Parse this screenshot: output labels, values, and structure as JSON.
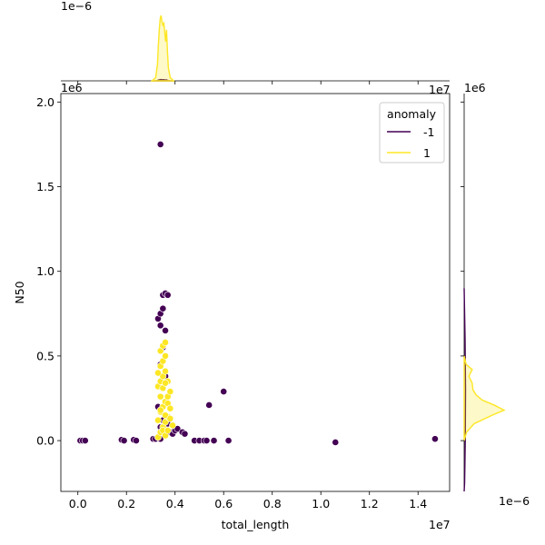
{
  "chart_data": {
    "type": "scatter",
    "xlabel": "total_length",
    "ylabel": "N50",
    "x_multiplier": "1e7",
    "y_multiplier": "1e6",
    "top_density_multiplier": "1e−6",
    "right_density_multiplier": "1e−6",
    "xlim": [
      -0.07,
      1.53
    ],
    "ylim": [
      -0.3,
      2.05
    ],
    "x_ticks": [
      "0.0",
      "0.2",
      "0.4",
      "0.6",
      "0.8",
      "1.0",
      "1.2",
      "1.4"
    ],
    "y_ticks": [
      "0.0",
      "0.5",
      "1.0",
      "1.5",
      "2.0"
    ],
    "legend": {
      "title": "anomaly",
      "placement": "top-right",
      "entries": [
        {
          "label": "-1",
          "color": "#440154"
        },
        {
          "label": "1",
          "color": "#fde725"
        }
      ]
    },
    "series": [
      {
        "name": "-1",
        "color": "#440154",
        "points": [
          [
            0.01,
            0.0
          ],
          [
            0.02,
            0.0
          ],
          [
            0.03,
            0.0
          ],
          [
            0.18,
            0.005
          ],
          [
            0.19,
            0.0
          ],
          [
            0.23,
            0.005
          ],
          [
            0.24,
            0.0
          ],
          [
            0.31,
            0.01
          ],
          [
            0.32,
            0.01
          ],
          [
            0.33,
            0.02
          ],
          [
            0.34,
            0.01
          ],
          [
            0.33,
            0.72
          ],
          [
            0.34,
            0.75
          ],
          [
            0.35,
            0.78
          ],
          [
            0.35,
            0.86
          ],
          [
            0.36,
            0.87
          ],
          [
            0.37,
            0.86
          ],
          [
            0.34,
            0.68
          ],
          [
            0.36,
            0.65
          ],
          [
            0.35,
            0.55
          ],
          [
            0.34,
            0.45
          ],
          [
            0.36,
            0.38
          ],
          [
            0.35,
            0.12
          ],
          [
            0.37,
            0.1
          ],
          [
            0.34,
            0.08
          ],
          [
            0.33,
            0.2
          ],
          [
            0.34,
            1.75
          ],
          [
            0.38,
            0.05
          ],
          [
            0.39,
            0.04
          ],
          [
            0.4,
            0.06
          ],
          [
            0.41,
            0.07
          ],
          [
            0.43,
            0.05
          ],
          [
            0.44,
            0.04
          ],
          [
            0.48,
            0.0
          ],
          [
            0.5,
            0.0
          ],
          [
            0.52,
            0.0
          ],
          [
            0.53,
            0.0
          ],
          [
            0.56,
            0.0
          ],
          [
            0.54,
            0.21
          ],
          [
            0.6,
            0.29
          ],
          [
            0.62,
            0.0
          ],
          [
            1.06,
            -0.01
          ],
          [
            1.47,
            0.01
          ]
        ]
      },
      {
        "name": "1",
        "color": "#fde725",
        "points": [
          [
            0.33,
            0.02
          ],
          [
            0.34,
            0.05
          ],
          [
            0.35,
            0.08
          ],
          [
            0.36,
            0.11
          ],
          [
            0.37,
            0.14
          ],
          [
            0.34,
            0.17
          ],
          [
            0.35,
            0.2
          ],
          [
            0.36,
            0.23
          ],
          [
            0.37,
            0.26
          ],
          [
            0.38,
            0.29
          ],
          [
            0.33,
            0.32
          ],
          [
            0.34,
            0.35
          ],
          [
            0.35,
            0.38
          ],
          [
            0.36,
            0.41
          ],
          [
            0.34,
            0.44
          ],
          [
            0.35,
            0.47
          ],
          [
            0.36,
            0.5
          ],
          [
            0.34,
            0.53
          ],
          [
            0.35,
            0.56
          ],
          [
            0.36,
            0.58
          ],
          [
            0.33,
            0.12
          ],
          [
            0.34,
            0.18
          ],
          [
            0.36,
            0.15
          ],
          [
            0.37,
            0.22
          ],
          [
            0.38,
            0.13
          ],
          [
            0.35,
            0.06
          ],
          [
            0.36,
            0.03
          ],
          [
            0.37,
            0.06
          ],
          [
            0.39,
            0.09
          ],
          [
            0.38,
            0.19
          ],
          [
            0.34,
            0.26
          ],
          [
            0.35,
            0.31
          ],
          [
            0.37,
            0.35
          ],
          [
            0.33,
            0.4
          ],
          [
            0.36,
            0.34
          ]
        ]
      }
    ],
    "marginal_x": {
      "series": [
        {
          "name": "-1",
          "color": "#440154",
          "peak_x": 0.35,
          "peak_density": 0.02
        },
        {
          "name": "1",
          "color": "#fde725",
          "peak_x": 0.35,
          "peak_density": 1.0
        }
      ]
    },
    "marginal_y": {
      "series": [
        {
          "name": "-1",
          "color": "#440154",
          "peak_y": 0.0,
          "peak_density": 0.03
        },
        {
          "name": "1",
          "color": "#fde725",
          "peak_y": 0.18,
          "peak_density": 1.0
        }
      ]
    }
  }
}
